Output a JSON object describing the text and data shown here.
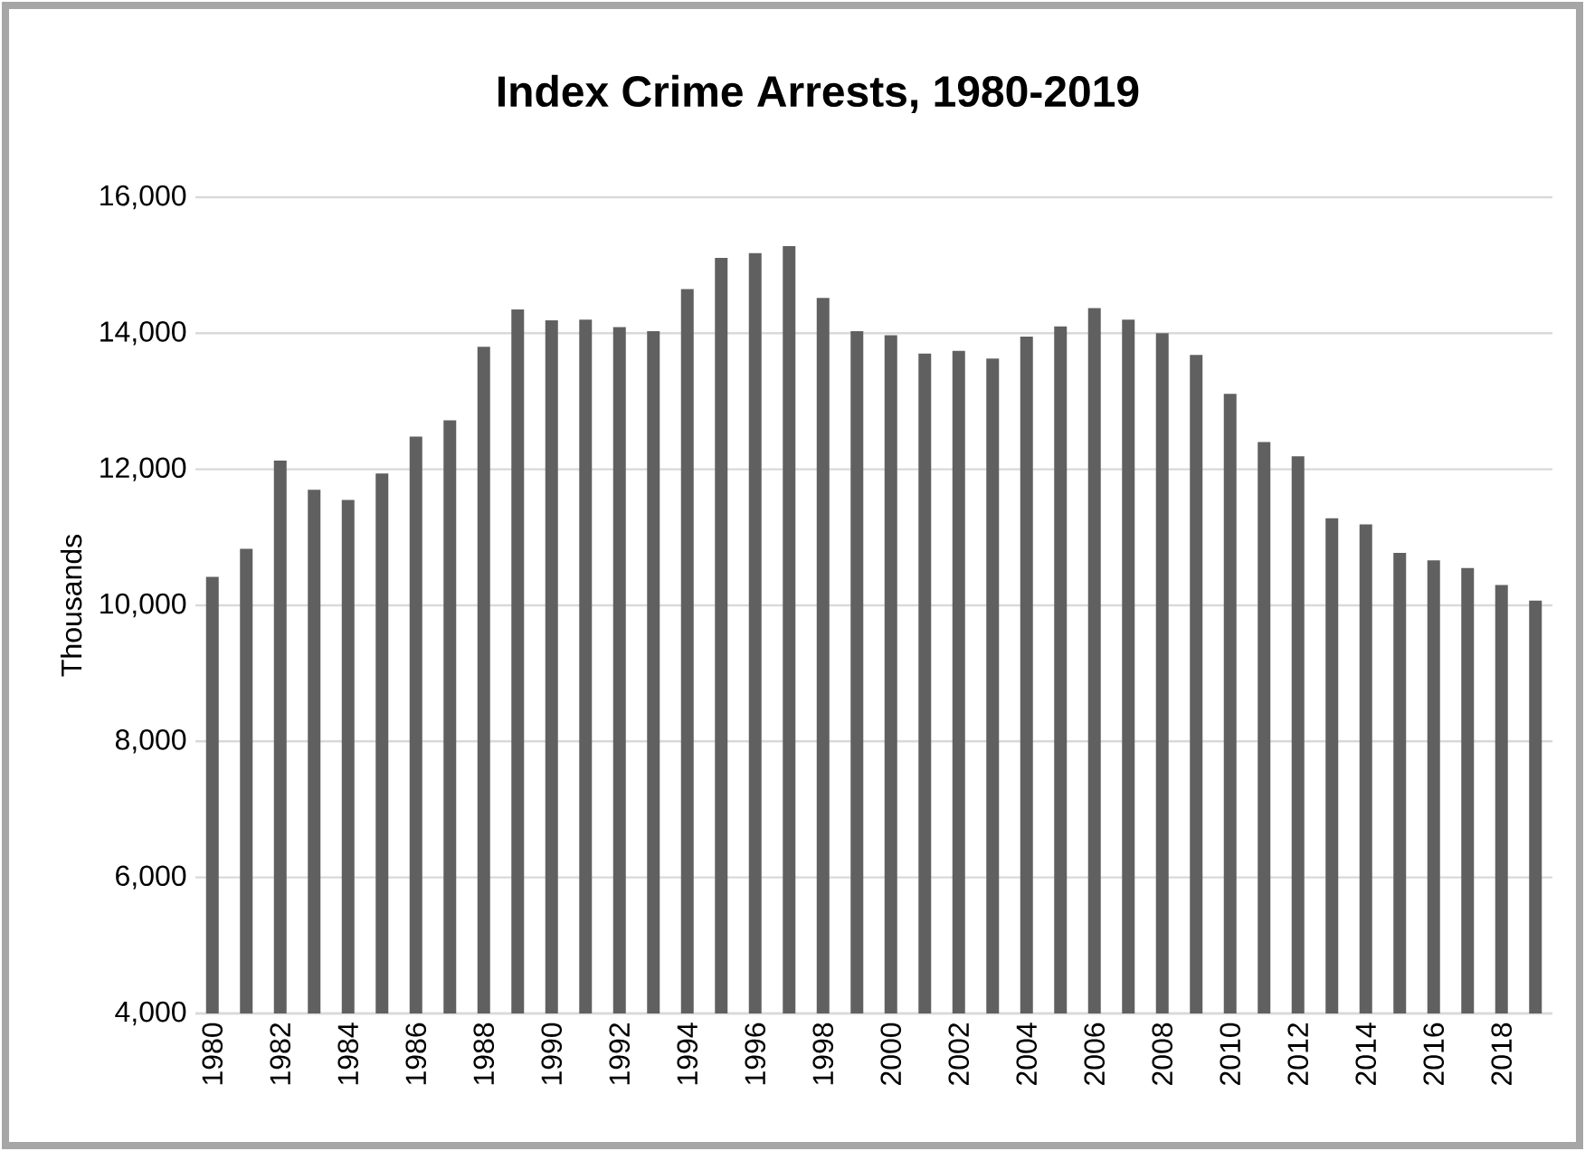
{
  "chart_data": {
    "type": "bar",
    "title": "Index Crime Arrests, 1980-2019",
    "ylabel": "Thousands",
    "categories": [
      "1980",
      null,
      "1982",
      null,
      "1984",
      null,
      "1986",
      null,
      "1988",
      null,
      "1990",
      null,
      "1992",
      null,
      "1994",
      null,
      "1996",
      null,
      "1998",
      null,
      "2000",
      null,
      "2002",
      null,
      "2004",
      null,
      "2006",
      null,
      "2008",
      null,
      "2010",
      null,
      "2012",
      null,
      "2014",
      null,
      "2016",
      null,
      "2018",
      null
    ],
    "values": [
      10420,
      10830,
      12130,
      11700,
      11550,
      11940,
      12480,
      12720,
      13800,
      14350,
      14190,
      14200,
      14090,
      14030,
      14650,
      15110,
      15180,
      15280,
      14520,
      14030,
      13970,
      13700,
      13740,
      13630,
      13950,
      14100,
      14370,
      14200,
      14000,
      13680,
      13110,
      12400,
      12190,
      11280,
      11190,
      10770,
      10660,
      10550,
      10300,
      10070
    ],
    "color": "#606060",
    "ylim": [
      4000,
      16000
    ],
    "yticks": [
      {
        "value": 4000,
        "label": "4,000"
      },
      {
        "value": 6000,
        "label": "6,000"
      },
      {
        "value": 8000,
        "label": "8,000"
      },
      {
        "value": 10000,
        "label": "10,000"
      },
      {
        "value": 12000,
        "label": "12,000"
      },
      {
        "value": 14000,
        "label": "14,000"
      },
      {
        "value": 16000,
        "label": "16,000"
      }
    ],
    "grid": "y"
  }
}
